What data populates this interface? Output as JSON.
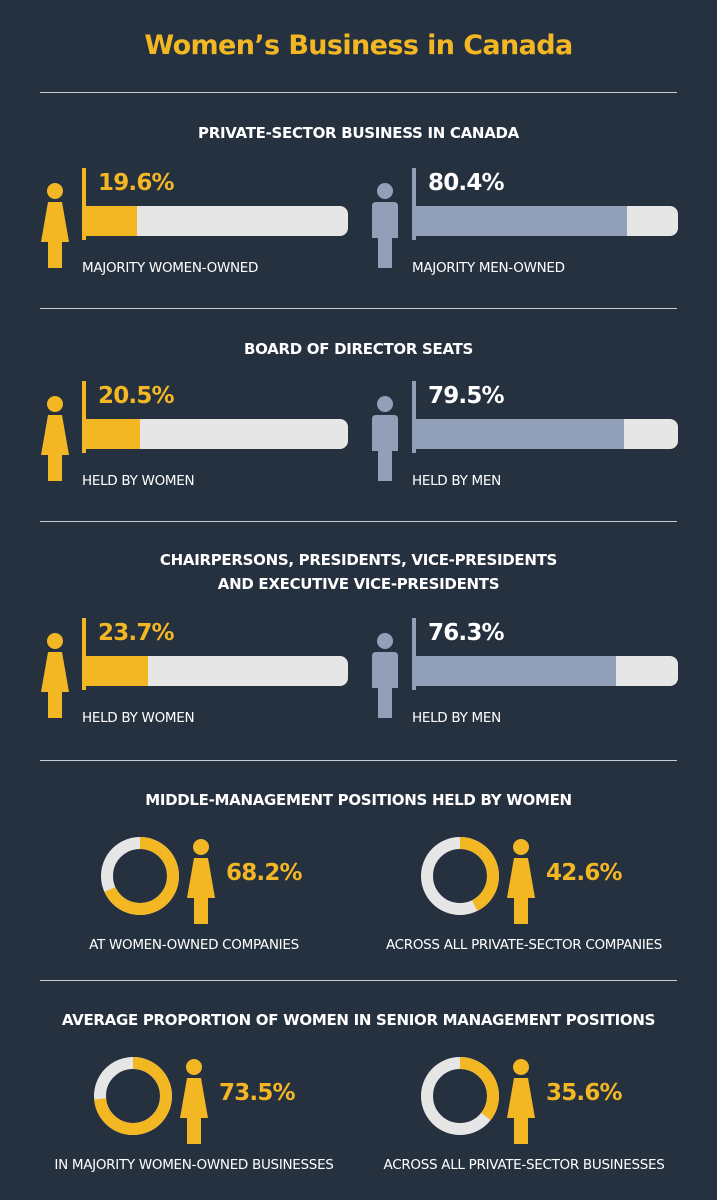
{
  "title": "Women’s Business in Canada",
  "colors": {
    "background": "#263140",
    "women": "#f3b724",
    "men": "#929fb9",
    "track": "#e6e6e6"
  },
  "chart_data": [
    {
      "type": "bar",
      "title": "PRIVATE-SECTOR BUSINESS IN CANADA",
      "series": [
        {
          "name": "MAJORITY WOMEN-OWNED",
          "label": "19.6%",
          "value": 19.6,
          "icon": "woman-icon"
        },
        {
          "name": "MAJORITY MEN-OWNED",
          "label": "80.4%",
          "value": 80.4,
          "icon": "man-icon"
        }
      ],
      "ylim": [
        0,
        100
      ]
    },
    {
      "type": "bar",
      "title": "BOARD OF DIRECTOR SEATS",
      "series": [
        {
          "name": "HELD BY WOMEN",
          "label": "20.5%",
          "value": 20.5,
          "icon": "woman-icon"
        },
        {
          "name": "HELD BY MEN",
          "label": "79.5%",
          "value": 79.5,
          "icon": "man-icon"
        }
      ],
      "ylim": [
        0,
        100
      ]
    },
    {
      "type": "bar",
      "title_lines": [
        "CHAIRPERSONS, PRESIDENTS, VICE-PRESIDENTS",
        "AND EXECUTIVE VICE-PRESIDENTS"
      ],
      "series": [
        {
          "name": "HELD BY WOMEN",
          "label": "23.7%",
          "value": 23.7,
          "icon": "woman-icon"
        },
        {
          "name": "HELD BY MEN",
          "label": "76.3%",
          "value": 76.3,
          "icon": "man-icon"
        }
      ],
      "ylim": [
        0,
        100
      ]
    },
    {
      "type": "pie",
      "title": "MIDDLE-MANAGEMENT POSITIONS HELD BY WOMEN",
      "series": [
        {
          "name": "AT WOMEN-OWNED COMPANIES",
          "label": "68.2%",
          "value": 68.2
        },
        {
          "name": "ACROSS ALL PRIVATE-SECTOR COMPANIES",
          "label": "42.6%",
          "value": 42.6
        }
      ]
    },
    {
      "type": "pie",
      "title": "AVERAGE PROPORTION OF WOMEN IN SENIOR MANAGEMENT POSITIONS",
      "series": [
        {
          "name": "IN MAJORITY WOMEN-OWNED BUSINESSES",
          "label": "73.5%",
          "value": 73.5
        },
        {
          "name": "ACROSS ALL PRIVATE-SECTOR BUSINESSES",
          "label": "35.6%",
          "value": 35.6
        }
      ]
    }
  ]
}
